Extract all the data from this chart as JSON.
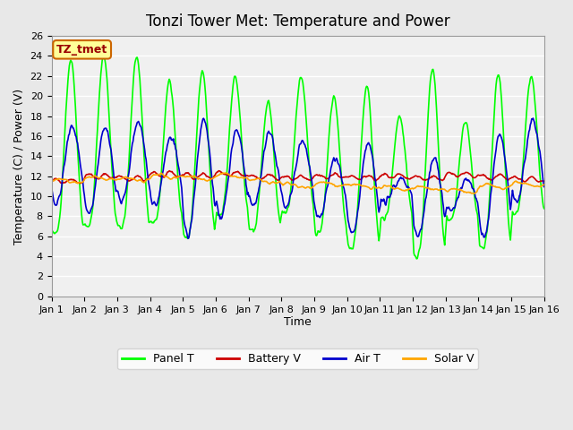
{
  "title": "Tonzi Tower Met: Temperature and Power",
  "xlabel": "Time",
  "ylabel": "Temperature (C) / Power (V)",
  "annotation": "TZ_tmet",
  "ylim": [
    0,
    26
  ],
  "yticks": [
    0,
    2,
    4,
    6,
    8,
    10,
    12,
    14,
    16,
    18,
    20,
    22,
    24,
    26
  ],
  "x_tick_labels": [
    "Jan 1",
    "Jan 2",
    "Jan 3",
    "Jan 4",
    "Jan 5",
    "Jan 6",
    "Jan 7",
    "Jan 8",
    "Jan 9",
    "Jan 10",
    "Jan 11",
    "Jan 12",
    "Jan 13",
    "Jan 14",
    "Jan 15",
    "Jan 16"
  ],
  "n_days": 15,
  "pts_per_day": 48,
  "panel_t_peaks": [
    23.7,
    24.2,
    24.0,
    21.5,
    22.5,
    22.0,
    19.5,
    22.0,
    20.0,
    20.9,
    18.0,
    22.8,
    17.5,
    22.1,
    22.0
  ],
  "panel_t_troughs": [
    6.2,
    7.0,
    6.8,
    7.3,
    5.8,
    8.0,
    6.5,
    8.5,
    6.3,
    4.8,
    7.8,
    4.0,
    7.5,
    4.8,
    8.2
  ],
  "battery_v_base": [
    11.5,
    12.0,
    11.8,
    12.2,
    12.0,
    12.2,
    11.9,
    11.8,
    12.0,
    11.9,
    12.0,
    11.8,
    12.2,
    11.9,
    11.7
  ],
  "air_t_peaks": [
    17.0,
    16.8,
    17.5,
    16.0,
    17.5,
    16.5,
    16.3,
    15.5,
    13.8,
    15.2,
    11.8,
    13.8,
    11.7,
    16.0,
    17.5
  ],
  "air_t_troughs": [
    9.2,
    8.2,
    9.5,
    9.0,
    6.0,
    8.0,
    9.0,
    8.8,
    7.8,
    6.2,
    9.5,
    6.0,
    8.5,
    6.0,
    9.5
  ],
  "solar_v_base": [
    11.5,
    11.8,
    11.7,
    12.0,
    11.8,
    12.0,
    11.5,
    11.0,
    11.2,
    11.0,
    10.8,
    10.8,
    10.5,
    11.0,
    11.2
  ],
  "colors": {
    "panel_t": "#00FF00",
    "battery_v": "#CC0000",
    "air_t": "#0000CC",
    "solar_v": "#FFA500"
  },
  "bg_color": "#E8E8E8",
  "plot_bg": "#F0F0F0",
  "grid_color": "#FFFFFF",
  "legend_labels": [
    "Panel T",
    "Battery V",
    "Air T",
    "Solar V"
  ],
  "annotation_bg": "#FFFF99",
  "annotation_border": "#CC6600"
}
